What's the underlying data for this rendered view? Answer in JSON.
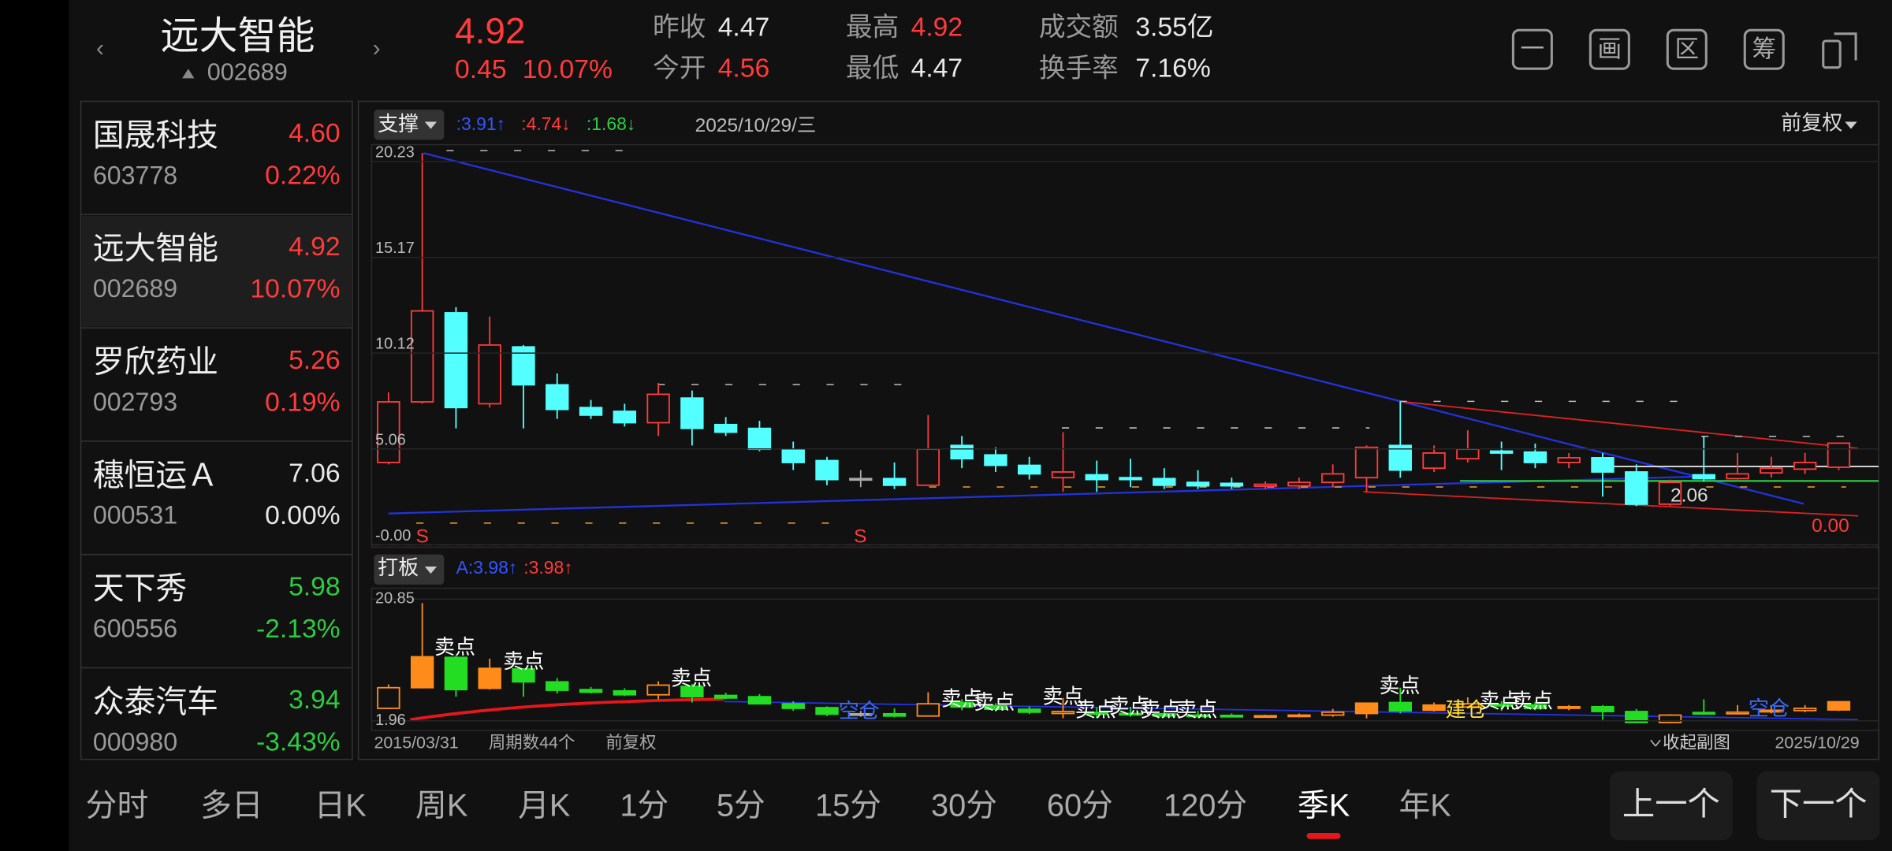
{
  "header": {
    "name": "远大智能",
    "code": "002689",
    "price": "4.92",
    "change": "0.45",
    "change_pct": "10.07%",
    "stats": [
      {
        "label": "昨收",
        "value": "4.47",
        "color": "#e8e8e8"
      },
      {
        "label": "今开",
        "value": "4.56",
        "color": "#ff3b3b"
      },
      {
        "label": "最高",
        "value": "4.92",
        "color": "#ff3b3b"
      },
      {
        "label": "最低",
        "value": "4.47",
        "color": "#e8e8e8"
      },
      {
        "label": "成交额",
        "value": "3.55亿",
        "color": "#e8e8e8"
      },
      {
        "label": "换手率",
        "value": "7.16%",
        "color": "#e8e8e8"
      }
    ],
    "tools": [
      "一",
      "画",
      "区",
      "筹"
    ]
  },
  "watchlist": [
    {
      "name": "国晟科技",
      "code": "603778",
      "price": "4.60",
      "change_pct": "0.22%",
      "color": "#ff3b3b"
    },
    {
      "name": "远大智能",
      "code": "002689",
      "price": "4.92",
      "change_pct": "10.07%",
      "color": "#ff3b3b"
    },
    {
      "name": "罗欣药业",
      "code": "002793",
      "price": "5.26",
      "change_pct": "0.19%",
      "color": "#ff3b3b"
    },
    {
      "name": "穗恒运Ａ",
      "code": "000531",
      "price": "7.06",
      "change_pct": "0.00%",
      "color": "#e8e8e8"
    },
    {
      "name": "天下秀",
      "code": "600556",
      "price": "5.98",
      "change_pct": "-2.13%",
      "color": "#2ecc40"
    },
    {
      "name": "众泰汽车",
      "code": "000980",
      "price": "3.94",
      "change_pct": "-3.43%",
      "color": "#2ecc40"
    }
  ],
  "chart_data": {
    "type": "candlestick",
    "indicator": "支撑",
    "indicator_values": [
      {
        "text": ":3.91↑",
        "color": "#3355ff"
      },
      {
        "text": ":4.74↓",
        "color": "#ff3b3b"
      },
      {
        "text": ":1.68↓",
        "color": "#2ecc40"
      }
    ],
    "date": "2025/10/29/三",
    "adjust": "前复权",
    "categories": [
      "2015/03/31",
      null,
      null,
      null,
      null,
      null,
      null,
      null,
      null,
      null,
      null,
      null,
      null,
      null,
      null,
      null,
      null,
      null,
      null,
      null,
      null,
      null,
      null,
      null,
      null,
      null,
      null,
      null,
      null,
      null,
      null,
      null,
      null,
      null,
      null,
      null,
      null,
      null,
      null,
      null,
      null,
      null,
      null,
      "2025/10/29"
    ],
    "open": [
      3.9,
      7.1,
      11.8,
      7.0,
      10.0,
      8.0,
      6.8,
      6.6,
      6.0,
      7.3,
      5.9,
      5.7,
      4.6,
      4.0,
      3.05,
      3.05,
      2.7,
      4.8,
      4.3,
      3.75,
      3.1,
      3.25,
      3.1,
      3.05,
      2.85,
      2.8,
      2.65,
      2.67,
      2.85,
      3.1,
      4.8,
      3.6,
      4.1,
      4.5,
      4.45,
      3.9,
      4.15,
      3.4,
      1.7,
      3.25,
      3.05,
      3.35,
      3.55,
      3.65
    ],
    "high": [
      7.6,
      20.23,
      12.1,
      11.6,
      10.1,
      8.6,
      7.2,
      7.0,
      8.1,
      7.7,
      6.3,
      6.1,
      5.0,
      4.2,
      3.5,
      3.9,
      6.4,
      5.3,
      4.7,
      4.2,
      5.5,
      4.0,
      4.1,
      3.6,
      3.5,
      3.1,
      2.9,
      3.1,
      3.8,
      4.8,
      7.1,
      4.8,
      5.6,
      5.0,
      4.9,
      4.4,
      4.4,
      3.8,
      3.0,
      5.3,
      4.4,
      4.2,
      4.4,
      4.92
    ],
    "low": [
      3.8,
      7.0,
      5.7,
      6.8,
      5.7,
      6.2,
      6.2,
      5.8,
      5.3,
      4.8,
      5.3,
      4.5,
      3.5,
      2.7,
      2.6,
      2.5,
      2.7,
      3.6,
      3.4,
      3.0,
      2.35,
      2.35,
      2.6,
      2.5,
      2.5,
      2.5,
      2.5,
      2.5,
      2.6,
      2.35,
      3.1,
      3.4,
      3.9,
      3.5,
      3.6,
      3.6,
      2.1,
      1.6,
      1.6,
      2.9,
      3.0,
      3.1,
      3.3,
      3.5
    ],
    "close": [
      7.1,
      11.9,
      6.8,
      10.1,
      8.0,
      6.7,
      6.4,
      6.0,
      7.5,
      5.7,
      5.5,
      4.6,
      3.9,
      3.0,
      3.05,
      2.7,
      4.6,
      4.1,
      3.75,
      3.3,
      3.4,
      3.0,
      3.0,
      2.7,
      2.67,
      2.67,
      2.75,
      2.85,
      3.3,
      4.7,
      3.5,
      4.4,
      4.6,
      4.4,
      3.9,
      4.15,
      3.4,
      1.7,
      2.85,
      3.05,
      3.3,
      3.6,
      3.9,
      4.92
    ],
    "ylim": [
      0,
      20.23
    ],
    "yticks": [
      {
        "value": 0,
        "label": "-0.00"
      },
      5.06,
      10.12,
      15.17,
      20.23
    ],
    "grid": true,
    "up_color": "#ff3b3b",
    "down_color": "#54ffff",
    "flat_color": "#aaaaaa",
    "annotations": [
      {
        "text": "S",
        "color": "#ff3b3b"
      },
      {
        "text": "S",
        "color": "#ff3b3b"
      },
      {
        "text": "2.06",
        "color": "#dddddd"
      },
      {
        "text": "0.00",
        "color": "#ff3b3b"
      }
    ],
    "sub_chart": {
      "indicator": "打板",
      "indicator_values": [
        {
          "text": "A:3.98↑",
          "color": "#3355ff"
        },
        {
          "text": ":3.98↑",
          "color": "#ff3b3b"
        }
      ],
      "ylim": [
        1.96,
        20.85
      ],
      "yticks": [
        1.96,
        20.85
      ],
      "up_color": "#ff8c1a",
      "down_color": "#22dd22",
      "annotations": [
        {
          "text": "卖点",
          "color": "#ffffff"
        },
        {
          "text": "卖点",
          "color": "#ffffff"
        },
        {
          "text": "卖点",
          "color": "#ffffff"
        },
        {
          "text": "空仓",
          "color": "#3a6cff"
        },
        {
          "text": "卖点",
          "color": "#ffffff"
        },
        {
          "text": "卖点",
          "color": "#ffffff"
        },
        {
          "text": "卖点",
          "color": "#ffffff"
        },
        {
          "text": "卖点",
          "color": "#ffffff"
        },
        {
          "text": "卖点",
          "color": "#ffffff"
        },
        {
          "text": "卖点",
          "color": "#ffffff"
        },
        {
          "text": "卖点",
          "color": "#ffffff"
        },
        {
          "text": "卖点",
          "color": "#ffffff"
        },
        {
          "text": "建仓",
          "color": "#ffe135"
        },
        {
          "text": "卖点",
          "color": "#ffffff"
        },
        {
          "text": "卖点",
          "color": "#ffffff"
        },
        {
          "text": "空仓",
          "color": "#3a6cff"
        }
      ]
    }
  },
  "footer": {
    "periods": "周期数44个",
    "adjust": "前复权",
    "collapse": "收起副图"
  },
  "tabs": [
    "分时",
    "多日",
    "日K",
    "周K",
    "月K",
    "1分",
    "5分",
    "15分",
    "30分",
    "60分",
    "120分",
    "季K",
    "年K"
  ],
  "selected_tab": 11,
  "buttons": [
    "上一个",
    "下一个"
  ]
}
